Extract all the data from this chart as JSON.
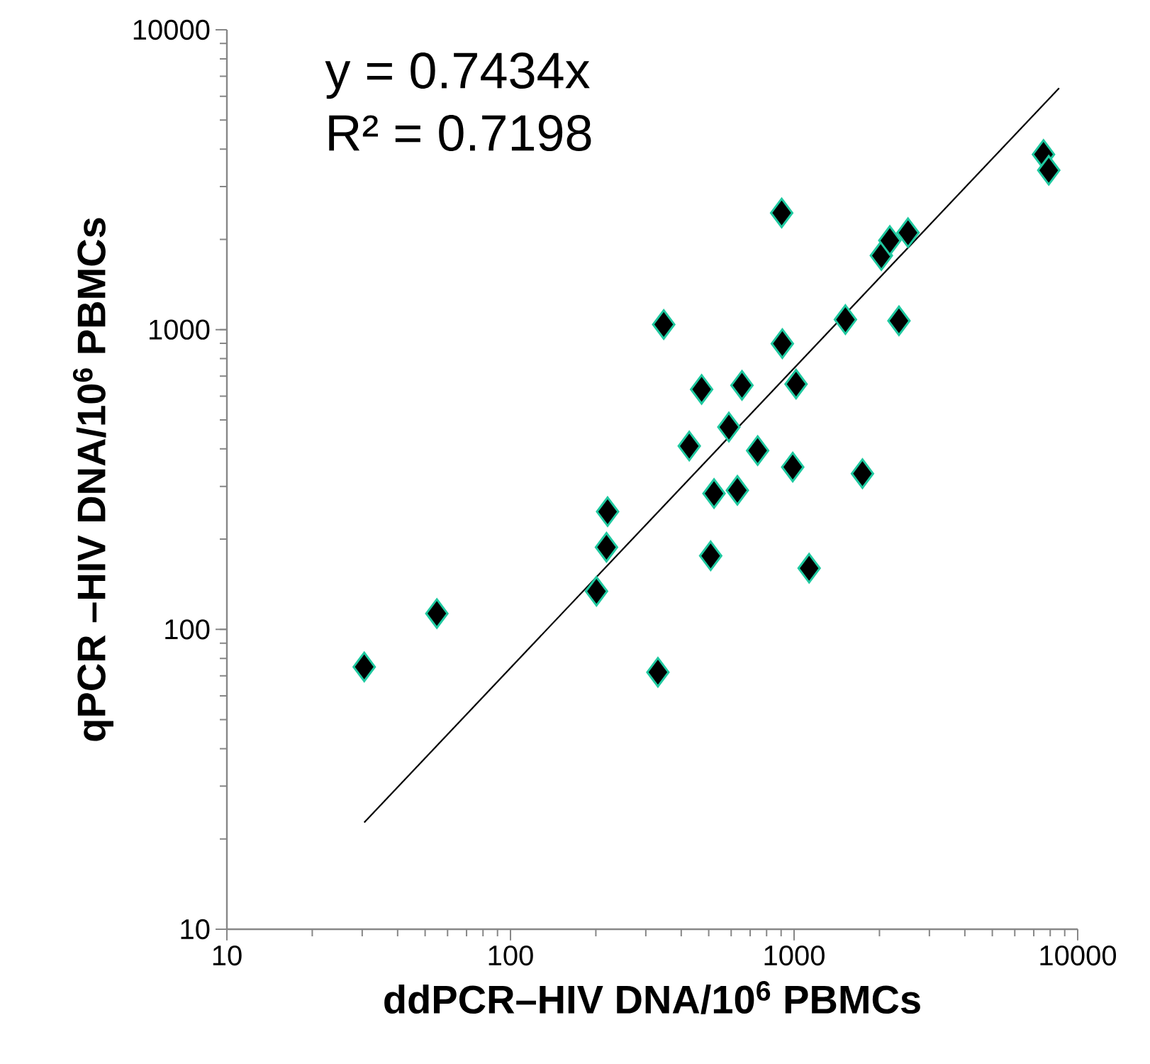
{
  "chart_data": {
    "type": "scatter",
    "xlabel": "ddPCR–HIV DNA/10$^{6}$ PBMCs",
    "ylabel": "qPCR –HIV DNA/10$^{6}$ PBMCs",
    "log": "xy",
    "grid": false,
    "xlim": [
      10,
      10000
    ],
    "ylim": [
      10,
      10000
    ],
    "xticks": [
      10,
      100,
      1000,
      10000
    ],
    "yticks": [
      10,
      100,
      1000,
      10000
    ],
    "annotations": [
      "y = 0.7434x",
      "R² = 0.7198"
    ],
    "series": [
      {
        "color": "#000000",
        "marker": "diamond",
        "x": [
          30.5,
          55,
          201,
          218,
          220,
          331,
          347,
          427,
          472,
          508,
          522,
          589,
          631,
          655,
          744,
          904,
          909,
          989,
          1016,
          1130,
          1517,
          1742,
          2031,
          2176,
          2343,
          2522,
          7577,
          7907
        ],
        "values": [
          75,
          113,
          134,
          188,
          247,
          72,
          1040,
          409,
          632,
          176,
          284,
          473,
          291,
          652,
          395,
          2450,
          898,
          348,
          658,
          160,
          1080,
          331,
          1766,
          1982,
          1070,
          2105,
          3840,
          3400
        ]
      },
      {
        "type": "line",
        "color": "#000000",
        "marker": "none",
        "line_style": "solid",
        "x": [
          30.5,
          8600
        ],
        "values": [
          22.7,
          6393
        ]
      }
    ]
  }
}
